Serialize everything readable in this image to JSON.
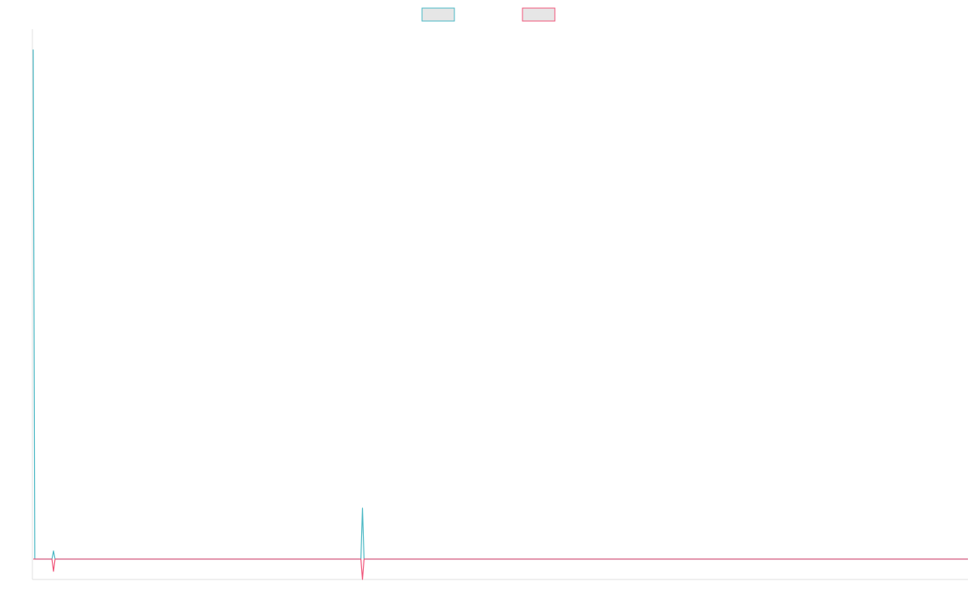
{
  "chart_data": {
    "type": "line",
    "title": "",
    "xlabel": "",
    "ylabel": "",
    "grid": false,
    "legend_position": "top-center",
    "x_count": 600,
    "ylim": [
      -1.0,
      26.0
    ],
    "colors": {
      "series_0": "#4bb8c4",
      "series_1": "#f0557a",
      "legend_fill": "#e6e6e6",
      "axis": "#e0e0e0"
    },
    "series": [
      {
        "name": "",
        "color": "#4bb8c4",
        "baseline": 0,
        "points": [
          {
            "x": 0,
            "y": 25.0
          },
          {
            "x": 1,
            "y": 0
          },
          {
            "x": 12,
            "y": 0
          },
          {
            "x": 13,
            "y": 0.4
          },
          {
            "x": 14,
            "y": 0
          },
          {
            "x": 210,
            "y": 0
          },
          {
            "x": 211,
            "y": 2.5
          },
          {
            "x": 212,
            "y": 0
          }
        ]
      },
      {
        "name": "",
        "color": "#f0557a",
        "baseline": 0,
        "points": [
          {
            "x": 0,
            "y": 0
          },
          {
            "x": 12,
            "y": 0
          },
          {
            "x": 13,
            "y": -0.6
          },
          {
            "x": 14,
            "y": 0
          },
          {
            "x": 210,
            "y": 0
          },
          {
            "x": 211,
            "y": -1.0
          },
          {
            "x": 212,
            "y": 0
          }
        ]
      }
    ]
  }
}
